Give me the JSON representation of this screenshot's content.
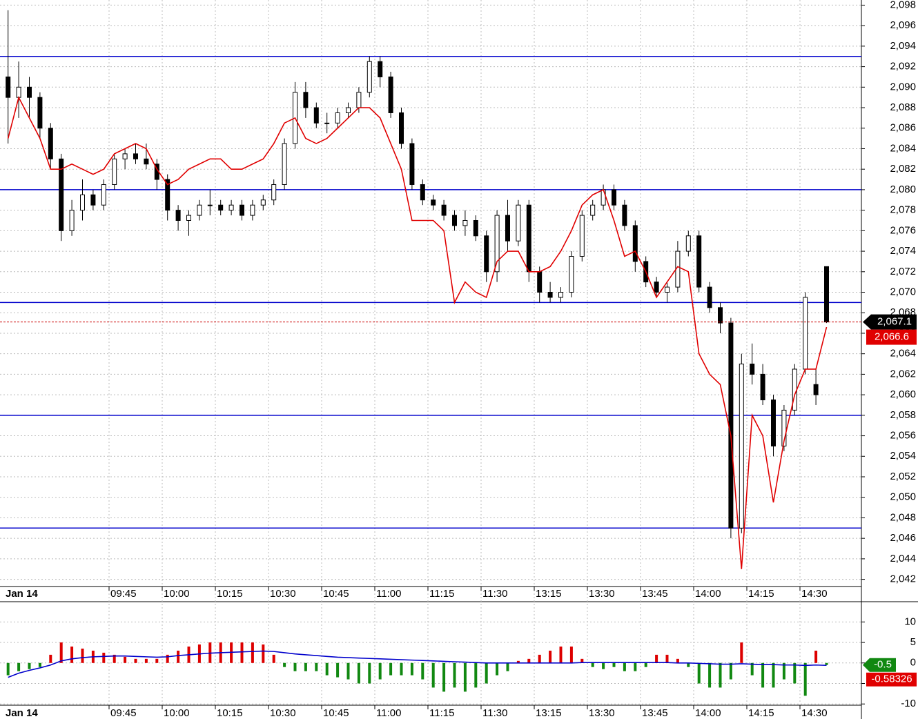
{
  "chart_data": [
    {
      "type": "candlestick",
      "date_label": "Jan 14",
      "categories": [
        null,
        null,
        null,
        null,
        null,
        null,
        null,
        null,
        null,
        null,
        "09:45",
        null,
        null,
        null,
        null,
        "10:00",
        null,
        null,
        null,
        null,
        "10:15",
        null,
        null,
        null,
        null,
        "10:30",
        null,
        null,
        null,
        null,
        "10:45",
        null,
        null,
        null,
        null,
        "11:00",
        null,
        null,
        null,
        null,
        "11:15",
        null,
        null,
        null,
        null,
        "11:30",
        null,
        null,
        null,
        null,
        "13:15",
        null,
        null,
        null,
        null,
        "13:30",
        null,
        null,
        null,
        null,
        "13:45",
        null,
        null,
        null,
        null,
        "14:00",
        null,
        null,
        null,
        null,
        "14:15",
        null,
        null,
        null,
        null,
        "14:30",
        null,
        null
      ],
      "candles": {
        "up_color": "#ffffff",
        "down_color": "#000000",
        "open": [
          2091,
          2089,
          2090,
          2089,
          2086,
          2083,
          2076,
          2078,
          2079.5,
          2078.5,
          2080.5,
          2083,
          2083.5,
          2083,
          2082.5,
          2081,
          2078,
          2077,
          2077.5,
          2078.5,
          2078.5,
          2078,
          2078.5,
          2077.5,
          2078.5,
          2079,
          2080.5,
          2084.5,
          2089.5,
          2088,
          2086.5,
          2086.5,
          2087.5,
          2088,
          2089.5,
          2092.5,
          2091,
          2087.5,
          2084.5,
          2080.5,
          2079,
          2078.5,
          2077.5,
          2076.5,
          2077,
          2075.5,
          2072,
          2077.5,
          2075,
          2078.5,
          2072,
          2070,
          2069.5,
          2070,
          2073.5,
          2077.5,
          2078.5,
          2080,
          2078.5,
          2076.5,
          2073,
          2071,
          2070,
          2070.5,
          2074,
          2075.5,
          2070.5,
          2068.5,
          2067,
          2047,
          2063,
          2062,
          2059.5,
          2055,
          2058.5,
          2062.5,
          2061,
          2072.5
        ],
        "high": [
          2097.5,
          2092.5,
          2091,
          2089.5,
          2086.5,
          2083.5,
          2079,
          2081,
          2080,
          2081,
          2083.5,
          2084,
          2084.5,
          2084.5,
          2083,
          2081.5,
          2078.5,
          2078,
          2079,
          2080,
          2079,
          2079,
          2079,
          2079,
          2079.5,
          2081,
          2085,
          2090.5,
          2090.5,
          2088.5,
          2087.5,
          2088,
          2088.5,
          2090,
          2093,
          2093,
          2091.5,
          2088,
          2085,
          2081,
          2079.5,
          2079,
          2078,
          2078,
          2077.5,
          2076,
          2078,
          2079,
          2079,
          2079,
          2072.5,
          2071,
          2070.5,
          2074,
          2078,
          2079,
          2080.5,
          2080.5,
          2079,
          2077,
          2073.5,
          2071.5,
          2071,
          2075,
          2076,
          2076,
          2071,
          2069,
          2067.5,
          2064,
          2065,
          2063,
          2060,
          2059,
          2063,
          2070,
          2062.5,
          2072.5
        ],
        "low": [
          2084.5,
          2087,
          2087,
          2085,
          2082,
          2075,
          2075.5,
          2077,
          2078,
          2078,
          2080,
          2082,
          2082.5,
          2082,
          2080,
          2077,
          2076,
          2075.5,
          2077,
          2077.5,
          2077.5,
          2077.5,
          2077,
          2077,
          2078,
          2078.5,
          2080,
          2084,
          2087,
          2086,
          2085.5,
          2086,
          2087,
          2087.5,
          2089,
          2090,
          2087,
          2084,
          2080,
          2078.5,
          2078,
          2077,
          2076,
          2075.5,
          2075,
          2071,
          2071,
          2074,
          2074.5,
          2071,
          2069,
          2069,
          2069,
          2069.5,
          2073,
          2077,
          2078,
          2078,
          2076,
          2072,
          2070.5,
          2069.5,
          2069,
          2070,
          2073.5,
          2070,
          2068,
          2066,
          2046,
          2046.5,
          2061,
          2059,
          2054,
          2054.5,
          2058,
          2062,
          2059,
          2067
        ],
        "close": [
          2089,
          2090,
          2089,
          2086,
          2083,
          2076,
          2078,
          2079.5,
          2078.5,
          2080.5,
          2083,
          2083.5,
          2083,
          2082.5,
          2081,
          2078,
          2077,
          2077.5,
          2078.5,
          2078.5,
          2078,
          2078.5,
          2077.5,
          2078.5,
          2079,
          2080.5,
          2084.5,
          2089.5,
          2088,
          2086.5,
          2086.5,
          2087.5,
          2088,
          2089.5,
          2092.5,
          2091,
          2087.5,
          2084.5,
          2080.5,
          2079,
          2078.5,
          2077.5,
          2076.5,
          2077,
          2075.5,
          2072,
          2077.5,
          2075,
          2078.5,
          2072,
          2070,
          2069.5,
          2070,
          2073.5,
          2077.5,
          2078.5,
          2080,
          2078.5,
          2076.5,
          2073,
          2071,
          2070,
          2070.5,
          2074,
          2075.5,
          2070.5,
          2068.5,
          2067,
          2047,
          2063,
          2062,
          2059.5,
          2055,
          2058.5,
          2062.5,
          2069.5,
          2060,
          2067.1
        ]
      },
      "series": [
        {
          "color": "#e00000",
          "values": [
            2085,
            2089,
            2087,
            2085,
            2082,
            2082,
            2082.5,
            2082,
            2081.5,
            2082,
            2083.5,
            2084,
            2084.5,
            2084,
            2082,
            2080.5,
            2081,
            2082,
            2082.5,
            2083,
            2083,
            2082,
            2082,
            2082.5,
            2083,
            2084.5,
            2086.5,
            2087,
            2085,
            2084.5,
            2085,
            2086,
            2087,
            2088,
            2088,
            2087,
            2084.5,
            2082,
            2077,
            2077,
            2077,
            2076,
            2069,
            2071,
            2070,
            2069.5,
            2073,
            2074,
            2074,
            2072,
            2072,
            2072.5,
            2074,
            2076,
            2078.5,
            2079.5,
            2080,
            2077,
            2073.5,
            2074,
            2072,
            2069.5,
            2071,
            2072.5,
            2072,
            2064,
            2062,
            2061,
            2056,
            2043,
            2058,
            2056,
            2049.5,
            2055.5,
            2060,
            2062.5,
            2062.5,
            2066.6
          ]
        }
      ],
      "hlines": [
        2093,
        2080,
        2069,
        2058,
        2047
      ],
      "hline_color": "#0000cc",
      "last_price": {
        "value": 2067.1,
        "label": "2,067.1"
      },
      "series_last": {
        "value": 2066.6,
        "label": "2,066.6"
      },
      "ylim": [
        2041.3,
        2098.5
      ],
      "yticks": [
        {
          "value": 2042,
          "label": "2,042"
        },
        {
          "value": 2044,
          "label": "2,044"
        },
        {
          "value": 2046,
          "label": "2,046"
        },
        {
          "value": 2048,
          "label": "2,048"
        },
        {
          "value": 2050,
          "label": "2,050"
        },
        {
          "value": 2052,
          "label": "2,052"
        },
        {
          "value": 2054,
          "label": "2,054"
        },
        {
          "value": 2056,
          "label": "2,056"
        },
        {
          "value": 2058,
          "label": "2,058"
        },
        {
          "value": 2060,
          "label": "2,060"
        },
        {
          "value": 2062,
          "label": "2,062"
        },
        {
          "value": 2064,
          "label": "2,064"
        },
        {
          "value": 2066,
          "label": "2,066"
        },
        {
          "value": 2068,
          "label": "2,068"
        },
        {
          "value": 2070,
          "label": "2,070"
        },
        {
          "value": 2072,
          "label": "2,072"
        },
        {
          "value": 2074,
          "label": "2,074"
        },
        {
          "value": 2076,
          "label": "2,076"
        },
        {
          "value": 2078,
          "label": "2,078"
        },
        {
          "value": 2080,
          "label": "2,080"
        },
        {
          "value": 2082,
          "label": "2,082"
        },
        {
          "value": 2084,
          "label": "2,084"
        },
        {
          "value": 2086,
          "label": "2,086"
        },
        {
          "value": 2088,
          "label": "2,088"
        },
        {
          "value": 2090,
          "label": "2,090"
        },
        {
          "value": 2092,
          "label": "2,092"
        },
        {
          "value": 2094,
          "label": "2,094"
        },
        {
          "value": 2096,
          "label": "2,096"
        },
        {
          "value": 2098,
          "label": "2,098"
        }
      ],
      "grid": true
    },
    {
      "type": "histogram-oscillator",
      "up_color": "#dd0000",
      "down_color": "#118811",
      "values": [
        -3,
        -2,
        -1.5,
        -1,
        2,
        5,
        4,
        3.5,
        3,
        2.5,
        2,
        1.5,
        1,
        1,
        1,
        2,
        3,
        4,
        4.5,
        5,
        5,
        5,
        5,
        5,
        4.5,
        2,
        -1,
        -2,
        -2,
        -2,
        -3,
        -3.5,
        -4,
        -5,
        -5,
        -4,
        -3,
        -3,
        -3,
        -4,
        -6,
        -7,
        -6,
        -7,
        -6,
        -5,
        -3,
        -2,
        0.5,
        1,
        2,
        3,
        4,
        4,
        1,
        -1,
        -1.5,
        -1,
        -2,
        -2,
        -1,
        2,
        2,
        1,
        -1,
        -5,
        -6,
        -6,
        -4,
        5,
        -3,
        -6,
        -6,
        -4,
        -5,
        -8,
        3,
        -0.5
      ],
      "value_labels": [
        null,
        null,
        null,
        null,
        null,
        null,
        null,
        null,
        null,
        null,
        null,
        null,
        null,
        null,
        null,
        null,
        null,
        null,
        null,
        null,
        null,
        null,
        null,
        null,
        null,
        null,
        null,
        null,
        null,
        null,
        null,
        null,
        null,
        null,
        null,
        null,
        null,
        null,
        null,
        null,
        null,
        null,
        null,
        null,
        null,
        null,
        null,
        null,
        null,
        null,
        null,
        null,
        null,
        null,
        null,
        null,
        null,
        null,
        null,
        null,
        null,
        null,
        null,
        null,
        null,
        null,
        null,
        null,
        null,
        null,
        null,
        null,
        null,
        null,
        null,
        null,
        null,
        "-0.5"
      ],
      "series": [
        {
          "color": "#0000cc",
          "values": [
            -3.5,
            -2.5,
            -1.8,
            -1.2,
            -0.5,
            0.5,
            1,
            1.3,
            1.5,
            1.6,
            1.7,
            1.7,
            1.6,
            1.5,
            1.4,
            1.5,
            1.8,
            2,
            2.2,
            2.4,
            2.5,
            2.6,
            2.7,
            2.8,
            2.9,
            2.8,
            2.5,
            2.2,
            2,
            1.8,
            1.6,
            1.4,
            1.3,
            1.2,
            1.1,
            1,
            0.9,
            0.8,
            0.7,
            0.6,
            0.5,
            0.4,
            0.3,
            0.2,
            0.1,
            0,
            0,
            0,
            0,
            0,
            0,
            0,
            0,
            0,
            0.1,
            0.1,
            0.1,
            0.1,
            0.1,
            0.1,
            0.1,
            0.1,
            0.1,
            0,
            0,
            -0.1,
            -0.2,
            -0.3,
            -0.3,
            -0.2,
            -0.3,
            -0.4,
            -0.4,
            -0.5,
            -0.5,
            -0.6,
            -0.5,
            -0.58326
          ]
        }
      ],
      "ylim": [
        -10.3,
        14.6
      ],
      "yticks": [
        -10,
        -5,
        0,
        5,
        10
      ],
      "grid": true
    }
  ]
}
